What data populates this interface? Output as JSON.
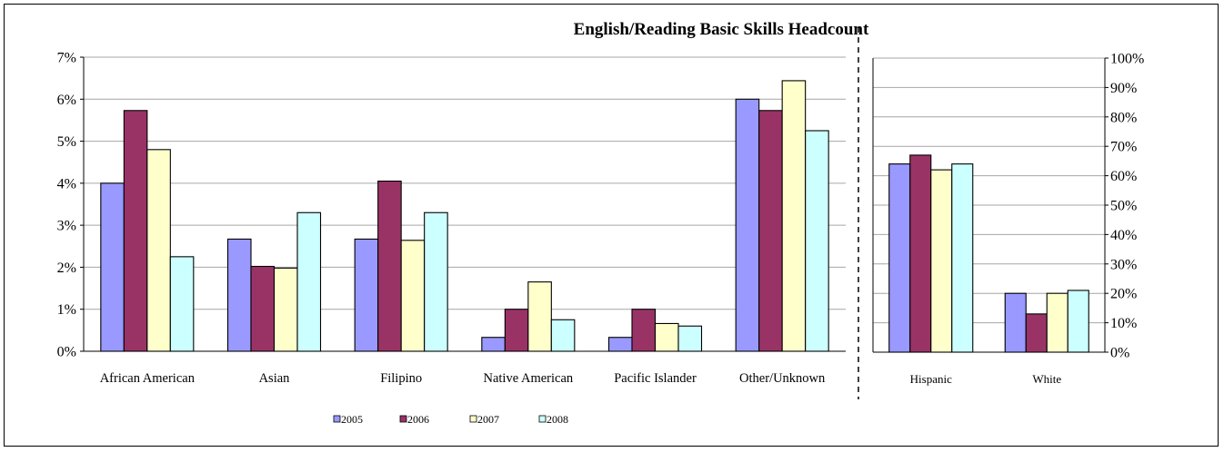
{
  "chart_data": [
    {
      "type": "bar",
      "title": "English/Reading Basic Skills Headcount",
      "xlabel": "",
      "ylabel": "",
      "ylim": [
        0,
        7
      ],
      "yticks": [
        "0%",
        "1%",
        "2%",
        "3%",
        "4%",
        "5%",
        "6%",
        "7%"
      ],
      "grid": true,
      "categories": [
        "African American",
        "Asian",
        "Filipino",
        "Native American",
        "Pacific Islander",
        "Other/Unknown"
      ],
      "series": [
        {
          "name": "2005",
          "color": "#9999ff",
          "values": [
            4.0,
            2.67,
            2.67,
            0.33,
            0.33,
            6.0
          ]
        },
        {
          "name": "2006",
          "color": "#993366",
          "values": [
            5.73,
            2.02,
            4.05,
            1.0,
            1.0,
            5.73
          ]
        },
        {
          "name": "2007",
          "color": "#ffffcc",
          "values": [
            4.8,
            1.98,
            2.64,
            1.65,
            0.66,
            6.44
          ]
        },
        {
          "name": "2008",
          "color": "#ccffff",
          "values": [
            2.25,
            3.3,
            3.3,
            0.75,
            0.6,
            5.25
          ]
        }
      ]
    },
    {
      "type": "bar",
      "title": "",
      "xlabel": "",
      "ylabel": "",
      "ylim": [
        0,
        100
      ],
      "yticks": [
        "0%",
        "10%",
        "20%",
        "30%",
        "40%",
        "50%",
        "60%",
        "70%",
        "80%",
        "90%",
        "100%"
      ],
      "grid": true,
      "categories": [
        "Hispanic",
        "White"
      ],
      "series": [
        {
          "name": "2005",
          "color": "#9999ff",
          "values": [
            64,
            20
          ]
        },
        {
          "name": "2006",
          "color": "#993366",
          "values": [
            67,
            13
          ]
        },
        {
          "name": "2007",
          "color": "#ffffcc",
          "values": [
            62,
            20
          ]
        },
        {
          "name": "2008",
          "color": "#ccffff",
          "values": [
            64,
            21
          ]
        }
      ]
    }
  ],
  "legend": {
    "position": "bottom",
    "items": [
      "2005",
      "2006",
      "2007",
      "2008"
    ]
  }
}
